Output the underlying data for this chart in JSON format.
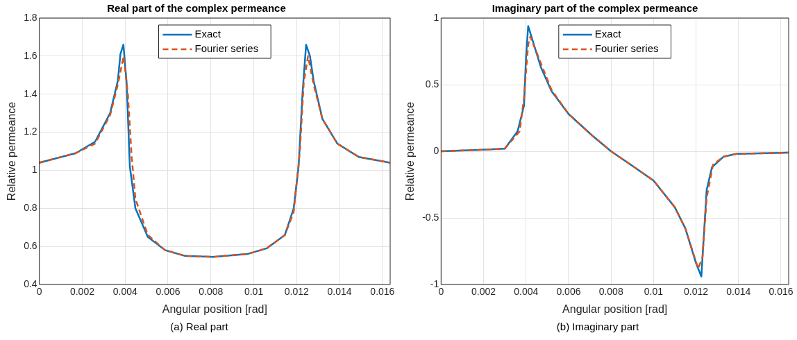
{
  "chart_data": [
    {
      "type": "line",
      "title": "Real part of the complex permeance",
      "xlabel": "Angular position [rad]",
      "ylabel": "Relative permeance",
      "annotations": [
        "(a) Real part"
      ],
      "xlim": [
        0,
        0.01636
      ],
      "xticks": [
        0,
        0.002,
        0.004,
        0.006,
        0.008,
        0.01,
        0.012,
        0.014,
        0.016
      ],
      "ylim": [
        0.4,
        1.8
      ],
      "yticks": [
        0.4,
        0.6,
        0.8,
        1,
        1.2,
        1.4,
        1.6,
        1.8
      ],
      "grid": true,
      "legend": "top",
      "series": [
        {
          "name": "Exact",
          "color": "#0072bd",
          "line_style": "solid",
          "x": [
            0,
            0.0017,
            0.0026,
            0.0033,
            0.00366,
            0.00378,
            0.00392,
            0.00407,
            0.00422,
            0.00448,
            0.00506,
            0.00587,
            0.0068,
            0.0081,
            0.0097,
            0.0106,
            0.01145,
            0.01186,
            0.01209,
            0.01227,
            0.01244,
            0.01262,
            0.01279,
            0.0132,
            0.0139,
            0.0149,
            0.01636
          ],
          "values": [
            1.04,
            1.09,
            1.15,
            1.3,
            1.47,
            1.61,
            1.66,
            1.46,
            1.02,
            0.8,
            0.65,
            0.58,
            0.55,
            0.545,
            0.56,
            0.59,
            0.66,
            0.8,
            1.02,
            1.4,
            1.66,
            1.6,
            1.47,
            1.27,
            1.14,
            1.07,
            1.04
          ]
        },
        {
          "name": "Fourier series",
          "color": "#d95319",
          "line_style": "dashed",
          "x": [
            0,
            0.0017,
            0.0026,
            0.0033,
            0.00366,
            0.00393,
            0.00413,
            0.0043,
            0.00448,
            0.00506,
            0.00587,
            0.0068,
            0.0081,
            0.0097,
            0.0106,
            0.01145,
            0.01186,
            0.01215,
            0.01233,
            0.01253,
            0.01279,
            0.0132,
            0.0139,
            0.0149,
            0.01636
          ],
          "values": [
            1.04,
            1.09,
            1.14,
            1.29,
            1.45,
            1.6,
            1.4,
            1.08,
            0.85,
            0.66,
            0.58,
            0.55,
            0.545,
            0.56,
            0.59,
            0.66,
            0.78,
            1.1,
            1.46,
            1.6,
            1.45,
            1.27,
            1.14,
            1.07,
            1.04
          ]
        }
      ]
    },
    {
      "type": "line",
      "title": "Imaginary part of the complex permeance",
      "xlabel": "Angular position [rad]",
      "ylabel": "Relative permeance",
      "annotations": [
        "(b) Imaginary part"
      ],
      "xlim": [
        0,
        0.01636
      ],
      "xticks": [
        0,
        0.002,
        0.004,
        0.006,
        0.008,
        0.01,
        0.012,
        0.014,
        0.016
      ],
      "ylim": [
        -1,
        1
      ],
      "yticks": [
        -1,
        -0.5,
        0,
        0.5,
        1
      ],
      "grid": true,
      "legend": "top",
      "series": [
        {
          "name": "Exact",
          "color": "#0072bd",
          "line_style": "solid",
          "x": [
            0,
            0.0018,
            0.003,
            0.0036,
            0.0039,
            0.004,
            0.0041,
            0.0047,
            0.0052,
            0.006,
            0.0071,
            0.008,
            0.0091,
            0.01,
            0.011,
            0.0115,
            0.012,
            0.01225,
            0.0125,
            0.01275,
            0.0133,
            0.0139,
            0.01636
          ],
          "values": [
            0,
            0.01,
            0.02,
            0.15,
            0.34,
            0.71,
            0.94,
            0.63,
            0.45,
            0.28,
            0.12,
            0,
            -0.12,
            -0.22,
            -0.42,
            -0.58,
            -0.84,
            -0.94,
            -0.29,
            -0.12,
            -0.04,
            -0.02,
            -0.01
          ]
        },
        {
          "name": "Fourier series",
          "color": "#d95319",
          "line_style": "dashed",
          "x": [
            0,
            0.0018,
            0.003,
            0.0037,
            0.0039,
            0.0041,
            0.0042,
            0.0048,
            0.0052,
            0.006,
            0.0071,
            0.008,
            0.0091,
            0.01,
            0.011,
            0.0115,
            0.0119,
            0.0121,
            0.0123,
            0.0125,
            0.0128,
            0.0133,
            0.0139,
            0.01636
          ],
          "values": [
            0,
            0.01,
            0.02,
            0.15,
            0.4,
            0.8,
            0.86,
            0.62,
            0.46,
            0.28,
            0.12,
            0,
            -0.12,
            -0.22,
            -0.42,
            -0.58,
            -0.78,
            -0.88,
            -0.8,
            -0.35,
            -0.1,
            -0.04,
            -0.02,
            -0.01
          ]
        }
      ]
    }
  ]
}
